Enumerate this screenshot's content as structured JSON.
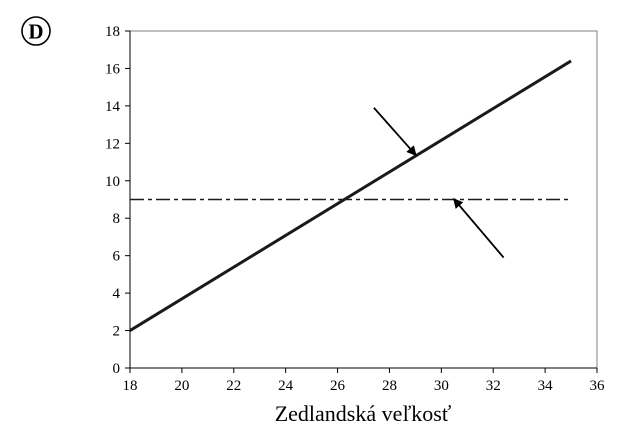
{
  "panel_label": "D",
  "chart_data": {
    "type": "line",
    "title": "",
    "xlabel": "Zedlandská veľkosť",
    "ylabel": "",
    "xlim": [
      18,
      36
    ],
    "ylim": [
      0,
      18
    ],
    "x_ticks": [
      18,
      20,
      22,
      24,
      26,
      28,
      30,
      32,
      34,
      36
    ],
    "y_ticks": [
      0,
      2,
      4,
      6,
      8,
      10,
      12,
      14,
      16,
      18
    ],
    "grid": false,
    "legend": "none",
    "series": [
      {
        "style": "solid",
        "color": "#1a1a1a",
        "x": [
          18,
          35
        ],
        "y": [
          2,
          16.4
        ]
      },
      {
        "style": "dash-dot",
        "color": "#1a1a1a",
        "x": [
          18,
          35
        ],
        "y": [
          9,
          9
        ]
      }
    ],
    "annotations": [
      {
        "type": "arrow",
        "points_to": "solid line",
        "tip": [
          29.0,
          11.4
        ],
        "tail": [
          27.4,
          13.9
        ]
      },
      {
        "type": "arrow",
        "points_to": "dashed line",
        "tip": [
          30.5,
          9.0
        ],
        "tail": [
          32.4,
          5.9
        ]
      }
    ]
  }
}
